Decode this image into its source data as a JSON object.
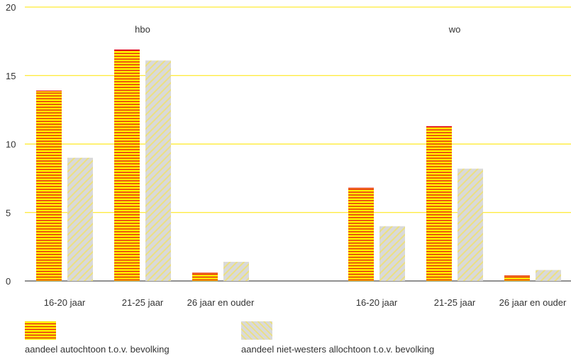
{
  "chart_data": {
    "type": "bar",
    "groups": [
      {
        "label": "hbo",
        "categories": [
          "16-20 jaar",
          "21-25 jaar",
          "26 jaar en ouder"
        ]
      },
      {
        "label": "wo",
        "categories": [
          "16-20 jaar",
          "21-25 jaar",
          "26 jaar en ouder"
        ]
      }
    ],
    "series": [
      {
        "name": "aandeel autochtoon t.o.v. bevolking",
        "values": [
          13.9,
          16.9,
          0.6,
          6.8,
          11.3,
          0.4
        ],
        "pattern": "horizontal-stripes",
        "color": "#ffe600",
        "stripe_color": "#e0001a"
      },
      {
        "name": "aandeel niet-westers allochtoon t.o.v. bevolking",
        "values": [
          9.0,
          16.1,
          1.4,
          4.0,
          8.2,
          0.8
        ],
        "pattern": "diagonal-hatch",
        "color": "#d9d9d9",
        "stripe_color": "#ece080"
      }
    ],
    "ylim": [
      0,
      20
    ],
    "yticks": [
      0,
      5,
      10,
      15,
      20
    ],
    "grid": true,
    "grid_color": "#ffe600",
    "legend_position": "bottom-left"
  }
}
